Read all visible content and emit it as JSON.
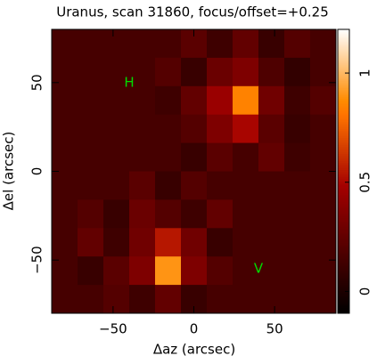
{
  "chart_data": {
    "type": "heatmap",
    "title": "Uranus, scan 31860, focus/offset=+0.25",
    "x_label": "Δaz (arcsec)",
    "y_label": "Δel (arcsec)",
    "x": [
      -80,
      -64,
      -48,
      -32,
      -16,
      0,
      16,
      32,
      48,
      64,
      80
    ],
    "y": [
      72,
      56,
      40,
      24,
      8,
      -8,
      -24,
      -40,
      -56,
      -72
    ],
    "z": [
      [
        0.15,
        0.15,
        0.15,
        0.15,
        0.15,
        0.22,
        0.12,
        0.25,
        0.1,
        0.2,
        0.15
      ],
      [
        0.15,
        0.15,
        0.15,
        0.15,
        0.2,
        0.1,
        0.28,
        0.35,
        0.18,
        0.08,
        0.15
      ],
      [
        0.15,
        0.15,
        0.15,
        0.15,
        0.12,
        0.25,
        0.45,
        0.85,
        0.3,
        0.12,
        0.2
      ],
      [
        0.15,
        0.15,
        0.15,
        0.15,
        0.15,
        0.2,
        0.35,
        0.5,
        0.22,
        0.1,
        0.15
      ],
      [
        0.15,
        0.15,
        0.15,
        0.15,
        0.15,
        0.1,
        0.22,
        0.15,
        0.25,
        0.12,
        0.15
      ],
      [
        0.15,
        0.15,
        0.15,
        0.22,
        0.1,
        0.2,
        0.15,
        0.15,
        0.15,
        0.15,
        0.15
      ],
      [
        0.15,
        0.2,
        0.1,
        0.28,
        0.2,
        0.12,
        0.25,
        0.15,
        0.15,
        0.15,
        0.15
      ],
      [
        0.15,
        0.25,
        0.12,
        0.3,
        0.55,
        0.3,
        0.1,
        0.15,
        0.15,
        0.15,
        0.15
      ],
      [
        0.15,
        0.1,
        0.22,
        0.35,
        0.9,
        0.35,
        0.2,
        0.15,
        0.15,
        0.15,
        0.15
      ],
      [
        0.15,
        0.15,
        0.2,
        0.12,
        0.25,
        0.1,
        0.15,
        0.15,
        0.15,
        0.15,
        0.15
      ]
    ],
    "xlim": [
      -88,
      88
    ],
    "ylim": [
      -80,
      80
    ],
    "xticks": [
      {
        "value": -50,
        "label": "−50"
      },
      0,
      50
    ],
    "yticks": [
      {
        "value": -50,
        "label": "−50"
      },
      0,
      50
    ],
    "colorbar_lim": [
      -0.1,
      1.2
    ],
    "colorbar_ticks": [
      0,
      0.5,
      1
    ],
    "annotations": [
      {
        "text": "H",
        "x": -40,
        "y": 50,
        "color": "#00dd00"
      },
      {
        "text": "V",
        "x": 40,
        "y": -55,
        "color": "#00dd00"
      }
    ]
  }
}
